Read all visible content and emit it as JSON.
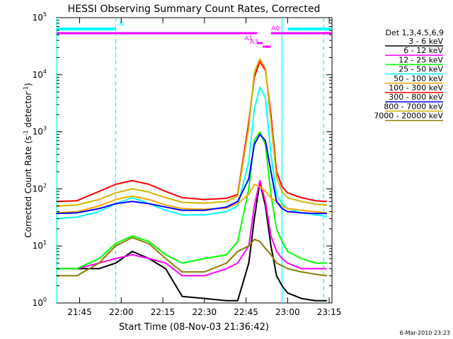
{
  "chart_data": {
    "type": "line",
    "title": "HESSI Observing Summary Count Rates, Corrected",
    "xlabel": "Start Time (08-Nov-03 21:36:42)",
    "ylabel_main": "Corrected Count Rate (s",
    "ylabel_sup1": "-1",
    "ylabel_mid": " detector",
    "ylabel_sup2": "-1",
    "ylabel_end": ")",
    "footer_date": "6-Mar-2010 23:23",
    "yscale": "log",
    "xlim": [
      "21:36:42",
      "23:16"
    ],
    "ylim": [
      1,
      100000
    ],
    "x_ticks": [
      "21:45",
      "22:00",
      "22:15",
      "22:30",
      "22:45",
      "23:00",
      "23:15"
    ],
    "y_tick_exponents": [
      "0",
      "1",
      "2",
      "3",
      "4",
      "5"
    ],
    "legend_header": "Det 1,3,4,5,6,9",
    "legend_placement": "right",
    "series": [
      {
        "name": "3 - 6 keV",
        "color": "#000000",
        "x": [
          "21:36:42",
          "21:44",
          "21:52",
          "21:58",
          "22:04",
          "22:10",
          "22:16",
          "22:22",
          "22:30",
          "22:38",
          "22:42",
          "22:46",
          "22:48",
          "22:50",
          "22:52",
          "22:54",
          "22:56",
          "22:58",
          "23:00",
          "23:05",
          "23:10",
          "23:14"
        ],
        "y": [
          4,
          4,
          4,
          5,
          8,
          6,
          4,
          1.3,
          1.2,
          1.1,
          1.1,
          5,
          30,
          130,
          50,
          10,
          3,
          2,
          1.5,
          1.2,
          1.1,
          1.1
        ]
      },
      {
        "name": "6 - 12 keV",
        "color": "#ff00ff",
        "x": [
          "21:36:42",
          "21:44",
          "21:52",
          "21:58",
          "22:04",
          "22:10",
          "22:16",
          "22:22",
          "22:30",
          "22:38",
          "22:42",
          "22:46",
          "22:48",
          "22:50",
          "22:52",
          "22:54",
          "22:56",
          "22:58",
          "23:00",
          "23:05",
          "23:10",
          "23:14"
        ],
        "y": [
          4,
          4,
          5,
          6,
          7,
          6,
          5,
          3,
          3,
          4,
          5,
          10,
          50,
          140,
          60,
          15,
          8,
          6,
          5,
          4,
          4,
          4
        ]
      },
      {
        "name": "12 - 25 keV",
        "color": "#00ff00",
        "x": [
          "21:36:42",
          "21:44",
          "21:52",
          "21:58",
          "22:04",
          "22:10",
          "22:16",
          "22:22",
          "22:30",
          "22:38",
          "22:42",
          "22:46",
          "22:48",
          "22:50",
          "22:52",
          "22:54",
          "22:56",
          "22:58",
          "23:00",
          "23:05",
          "23:10",
          "23:14"
        ],
        "y": [
          4,
          4,
          6,
          11,
          15,
          12,
          7,
          5,
          6,
          7,
          12,
          100,
          700,
          1000,
          600,
          80,
          20,
          12,
          8,
          6,
          5,
          5
        ]
      },
      {
        "name": "25 - 50 keV",
        "color": "#00ffff",
        "x": [
          "21:36:42",
          "21:44",
          "21:52",
          "21:58",
          "22:04",
          "22:10",
          "22:16",
          "22:22",
          "22:30",
          "22:38",
          "22:42",
          "22:46",
          "22:48",
          "22:50",
          "22:52",
          "22:54",
          "22:56",
          "22:58",
          "23:00",
          "23:05",
          "23:10",
          "23:14"
        ],
        "y": [
          30,
          32,
          40,
          55,
          70,
          55,
          42,
          35,
          35,
          40,
          50,
          300,
          2500,
          6000,
          4000,
          400,
          80,
          55,
          45,
          38,
          35,
          33
        ]
      },
      {
        "name": "50 - 100 keV",
        "color": "#ffa500",
        "x": [
          "21:36:42",
          "21:44",
          "21:52",
          "21:58",
          "22:04",
          "22:10",
          "22:16",
          "22:22",
          "22:30",
          "22:38",
          "22:42",
          "22:46",
          "22:48",
          "22:50",
          "22:52",
          "22:54",
          "22:56",
          "22:58",
          "23:00",
          "23:05",
          "23:10",
          "23:14"
        ],
        "y": [
          38,
          40,
          50,
          65,
          75,
          65,
          52,
          45,
          44,
          46,
          55,
          80,
          120,
          110,
          90,
          70,
          60,
          50,
          45,
          42,
          40,
          38
        ]
      },
      {
        "name": "100 - 300 keV",
        "color": "#ff0000",
        "x": [
          "21:36:42",
          "21:44",
          "21:52",
          "21:58",
          "22:04",
          "22:10",
          "22:16",
          "22:22",
          "22:30",
          "22:38",
          "22:42",
          "22:46",
          "22:48",
          "22:50",
          "22:52",
          "22:54",
          "22:56",
          "22:58",
          "23:00",
          "23:05",
          "23:10",
          "23:14"
        ],
        "y": [
          60,
          62,
          90,
          120,
          140,
          120,
          90,
          70,
          65,
          68,
          80,
          1500,
          9000,
          17000,
          12000,
          2000,
          200,
          110,
          85,
          70,
          62,
          60
        ]
      },
      {
        "name": "300 - 800 keV",
        "color": "#0000ff",
        "x": [
          "21:36:42",
          "21:44",
          "21:52",
          "21:58",
          "22:04",
          "22:10",
          "22:16",
          "22:22",
          "22:30",
          "22:38",
          "22:42",
          "22:46",
          "22:48",
          "22:50",
          "22:52",
          "22:54",
          "22:56",
          "22:58",
          "23:00",
          "23:05",
          "23:10",
          "23:14"
        ],
        "y": [
          37,
          38,
          45,
          55,
          60,
          55,
          48,
          42,
          42,
          48,
          60,
          150,
          600,
          900,
          700,
          200,
          60,
          45,
          40,
          38,
          37,
          37
        ]
      },
      {
        "name": "800 - 7000 keV",
        "color": "#d2b500",
        "x": [
          "21:36:42",
          "21:44",
          "21:52",
          "21:58",
          "22:04",
          "22:10",
          "22:16",
          "22:22",
          "22:30",
          "22:38",
          "22:42",
          "22:46",
          "22:48",
          "22:50",
          "22:52",
          "22:54",
          "22:56",
          "22:58",
          "23:00",
          "23:05",
          "23:10",
          "23:14"
        ],
        "y": [
          50,
          52,
          65,
          85,
          100,
          88,
          70,
          58,
          56,
          60,
          75,
          1200,
          11000,
          19000,
          13000,
          1500,
          160,
          90,
          70,
          60,
          54,
          52
        ]
      },
      {
        "name": "7000 - 20000 keV",
        "color": "#8b7d00",
        "x": [
          "21:36:42",
          "21:44",
          "21:52",
          "21:58",
          "22:04",
          "22:10",
          "22:16",
          "22:22",
          "22:30",
          "22:38",
          "22:42",
          "22:46",
          "22:48",
          "22:50",
          "22:52",
          "22:54",
          "22:56",
          "22:58",
          "23:00",
          "23:05",
          "23:10",
          "23:14"
        ],
        "y": [
          3,
          3,
          5,
          10,
          14,
          11,
          6,
          3.5,
          3.5,
          5,
          8,
          10,
          13,
          12,
          9,
          7,
          5,
          4.5,
          4,
          3.5,
          3.2,
          3
        ]
      }
    ],
    "attenuator_bars": [
      {
        "label": "N",
        "color": "#00ffff",
        "segments": [
          [
            "21:36:42",
            "21:58"
          ],
          [
            "23:00",
            "23:16"
          ]
        ]
      },
      {
        "label": "A0",
        "color": "#ff00ff",
        "segments": [
          [
            "21:36:42",
            "22:49"
          ],
          [
            "22:54",
            "23:16"
          ]
        ]
      },
      {
        "label": "A1",
        "color": "#ff00ff",
        "segments": [
          [
            "22:49",
            "22:51"
          ]
        ]
      },
      {
        "label": "A3",
        "color": "#ff00ff",
        "segments": [
          [
            "22:51",
            "22:54"
          ]
        ]
      }
    ],
    "vertical_markers": [
      {
        "x": "21:58",
        "color": "#00ffff",
        "style": "dashed"
      },
      {
        "x": "22:58",
        "color": "#00ffff",
        "style": "solid"
      },
      {
        "x": "23:13",
        "color": "#00ffff",
        "style": "dashed"
      },
      {
        "x": "21:36:42",
        "color": "#00ffff",
        "style": "solid"
      }
    ]
  }
}
